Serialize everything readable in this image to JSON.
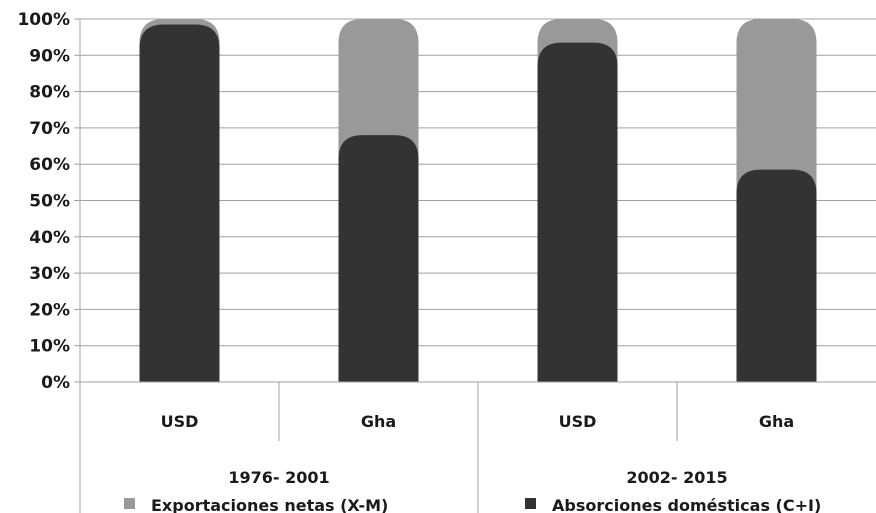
{
  "chart_data": {
    "type": "bar",
    "stacked": true,
    "percent_stacked": true,
    "categories": [
      "USD",
      "Gha",
      "USD",
      "Gha"
    ],
    "groups": [
      {
        "label": "1976- 2001",
        "categories": [
          "USD",
          "Gha"
        ]
      },
      {
        "label": "2002- 2015",
        "categories": [
          "USD",
          "Gha"
        ]
      }
    ],
    "series": [
      {
        "name": "Absorciones domésticas (C+I)",
        "color": "#333333",
        "values": [
          98.5,
          68,
          93.5,
          58.5
        ]
      },
      {
        "name": "Exportaciones netas (X-M)",
        "color": "#999999",
        "values": [
          1.5,
          32,
          6.5,
          41.5
        ]
      }
    ],
    "ylim": [
      0,
      100
    ],
    "yticks": [
      "0%",
      "10%",
      "20%",
      "30%",
      "40%",
      "50%",
      "60%",
      "70%",
      "80%",
      "90%",
      "100%"
    ],
    "grid": true,
    "legend": [
      {
        "name": "Exportaciones netas (X-M)",
        "color": "#999999"
      },
      {
        "name": "Absorciones domésticas (C+I)",
        "color": "#333333"
      }
    ],
    "legend_position": "bottom"
  }
}
